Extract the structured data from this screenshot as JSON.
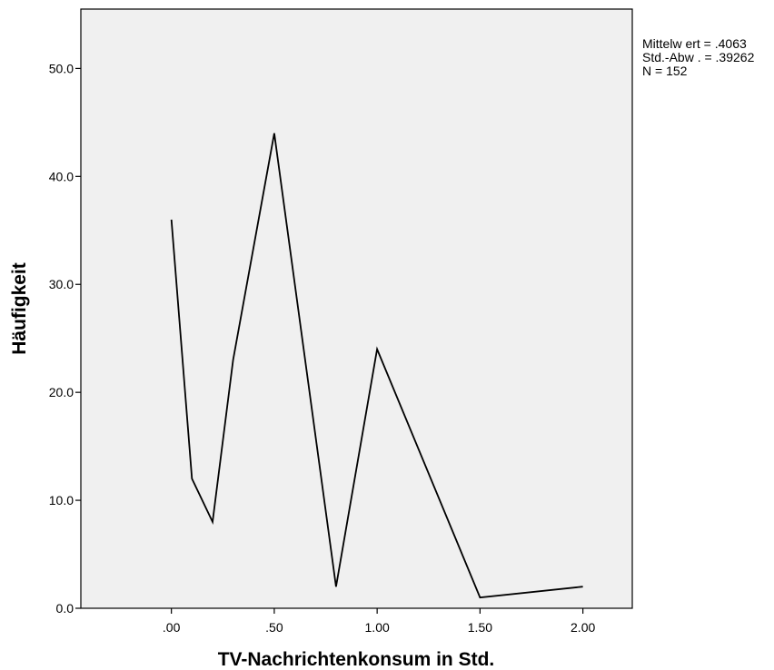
{
  "chart_data": {
    "type": "line",
    "xlabel": "TV-Nachrichtenkonsum in Std.",
    "ylabel": "Häufigkeit",
    "x_ticks": [
      ".00",
      ".50",
      "1.00",
      "1.50",
      "2.00"
    ],
    "y_ticks": [
      "0.0",
      "10.0",
      "20.0",
      "30.0",
      "40.0",
      "50.0"
    ],
    "xlim": [
      -0.44,
      2.24
    ],
    "ylim": [
      0,
      55.5
    ],
    "grid": false,
    "series": [
      {
        "x": [
          0.0,
          0.1,
          0.2,
          0.3,
          0.5,
          0.8,
          1.0,
          1.5,
          2.0
        ],
        "y": [
          36,
          12,
          8,
          23,
          44,
          2,
          24,
          1,
          2
        ]
      }
    ],
    "colors": {
      "plot_background": "#f0f0f0",
      "line": "#000000"
    }
  },
  "stats": {
    "mean": "Mittelw ert = .4063",
    "sd": "Std.-Abw . = .39262",
    "n": "N = 152"
  }
}
